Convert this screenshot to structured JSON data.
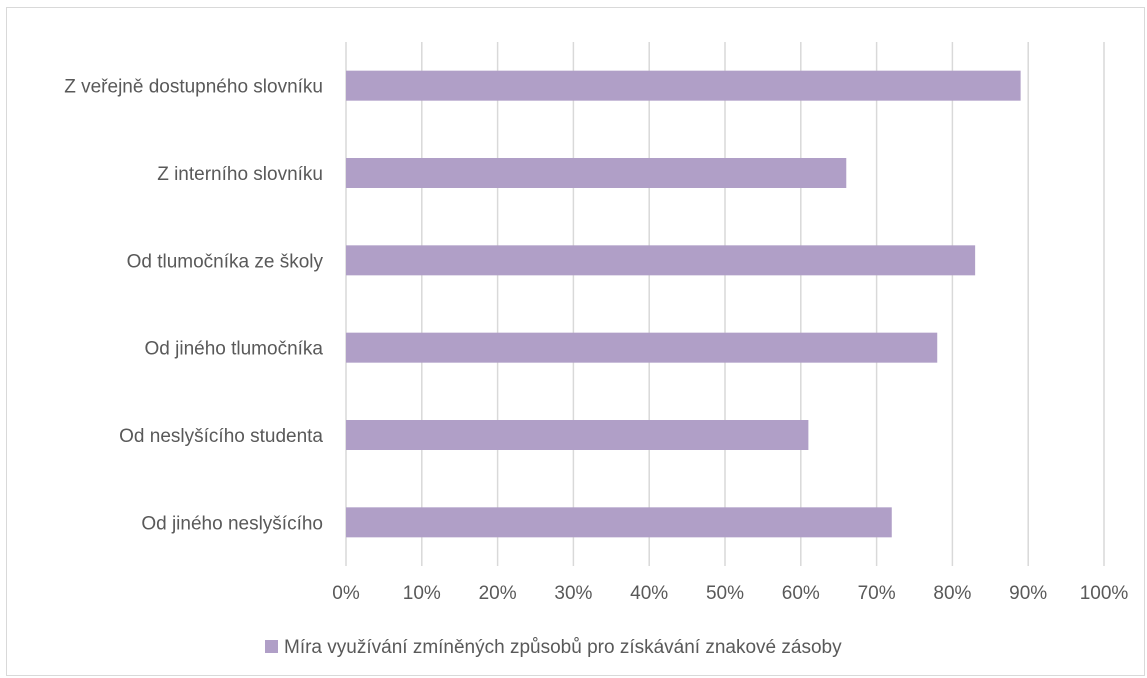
{
  "chart_data": {
    "type": "bar",
    "orientation": "horizontal",
    "categories": [
      "Z veřejně dostupného slovníku",
      "Z interního slovníku",
      "Od tlumočníka ze školy",
      "Od jiného tlumočníka",
      "Od neslyšícího studenta",
      "Od jiného neslyšícího"
    ],
    "series": [
      {
        "name": "Míra využívání zmíněných způsobů pro získávání znakové zásoby",
        "color": "#b09fc7",
        "values": [
          0.89,
          0.66,
          0.83,
          0.78,
          0.61,
          0.72
        ]
      }
    ],
    "xlim": [
      0,
      1
    ],
    "x_ticks": [
      0,
      0.1,
      0.2,
      0.3,
      0.4,
      0.5,
      0.6,
      0.7,
      0.8,
      0.9,
      1.0
    ],
    "x_tick_labels": [
      "0%",
      "10%",
      "20%",
      "30%",
      "40%",
      "50%",
      "60%",
      "70%",
      "80%",
      "90%",
      "100%"
    ],
    "grid": true,
    "legend_position": "bottom",
    "title": "",
    "xlabel": "",
    "ylabel": ""
  }
}
